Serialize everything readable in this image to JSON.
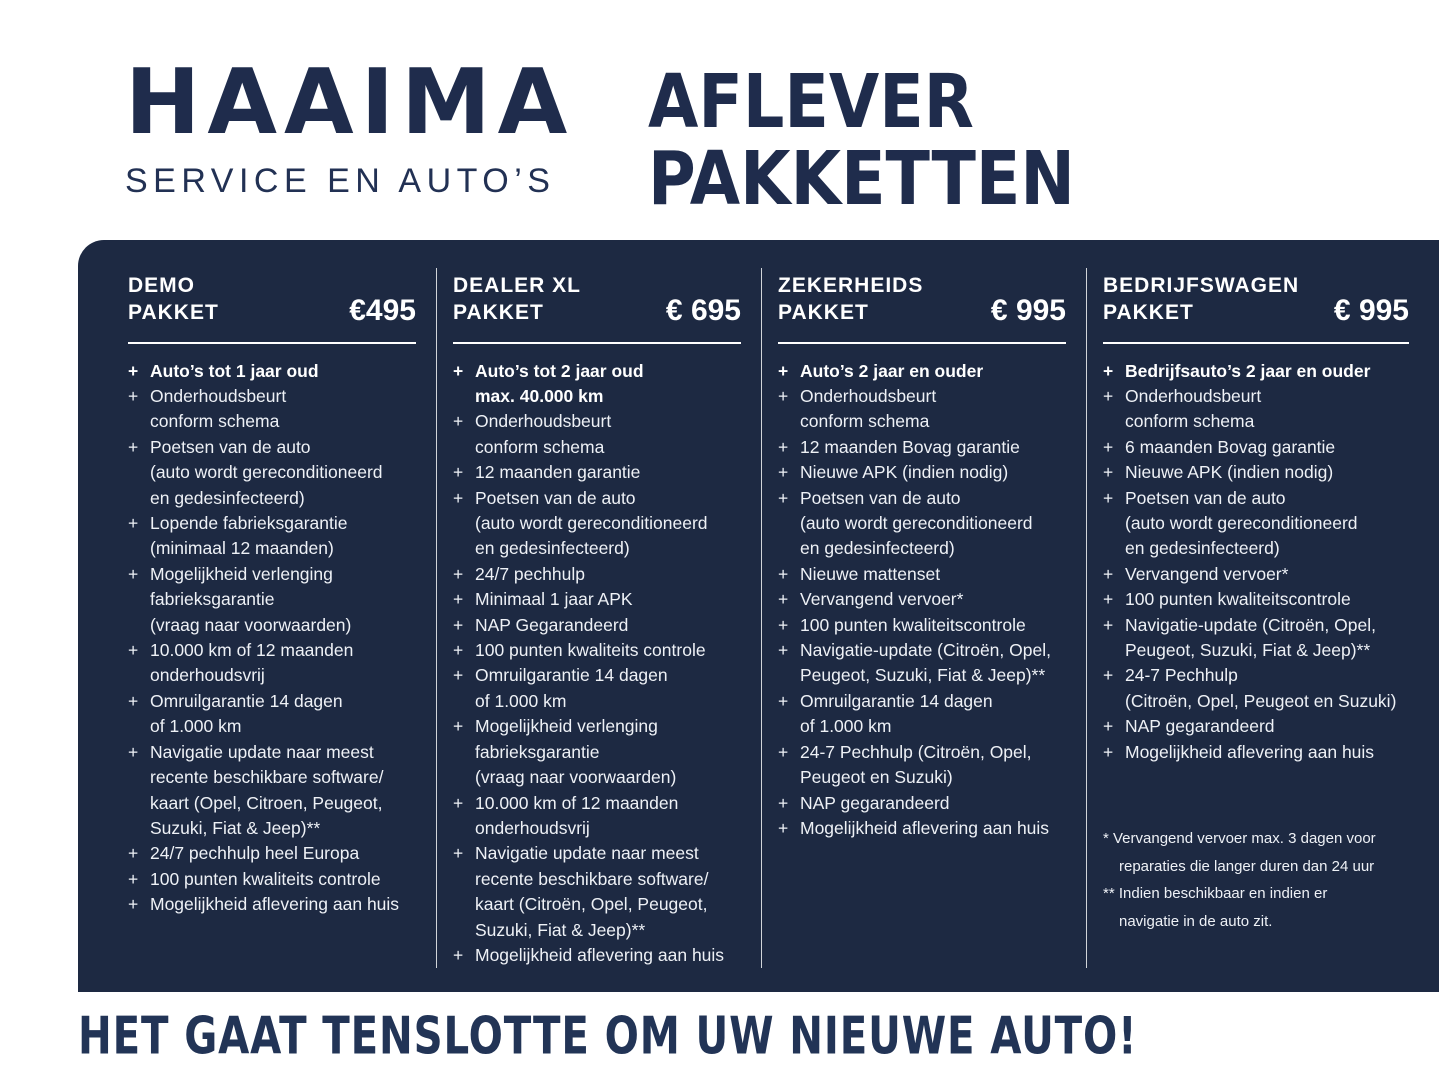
{
  "brand": {
    "name": "HAAIMA",
    "tagline": "SERVICE EN AUTO’S"
  },
  "title": "AFLEVER\nPAKKETTEN",
  "colors": {
    "panel_background": "#1d2942",
    "navy_text": "#1f2c4c",
    "panel_text": "#eef1f6"
  },
  "bullet": "+",
  "packages": [
    {
      "name": "DEMO\nPAKKET",
      "price": "€495",
      "items": [
        {
          "text": "Auto’s tot 1 jaar oud",
          "bold": true
        },
        {
          "text": "Onderhoudsbeurt\nconform schema"
        },
        {
          "text": "Poetsen van de auto\n(auto wordt gereconditioneerd\nen gedesinfecteerd)"
        },
        {
          "text": "Lopende fabrieksgarantie\n(minimaal 12 maanden)"
        },
        {
          "text": "Mogelijkheid verlenging\nfabrieksgarantie\n(vraag naar voorwaarden)"
        },
        {
          "text": "10.000 km of 12 maanden\nonderhoudsvrij"
        },
        {
          "text": "Omruilgarantie 14 dagen\nof 1.000 km"
        },
        {
          "text": "Navigatie update naar meest\nrecente beschikbare software/\nkaart (Opel, Citroen,  Peugeot,\nSuzuki, Fiat & Jeep)**"
        },
        {
          "text": "24/7 pechhulp heel Europa"
        },
        {
          "text": "100 punten kwaliteits controle"
        },
        {
          "text": "Mogelijkheid aflevering aan huis"
        }
      ]
    },
    {
      "name": "DEALER XL\nPAKKET",
      "price": "€ 695",
      "items": [
        {
          "text": "Auto’s tot 2 jaar oud\nmax. 40.000 km",
          "bold": true
        },
        {
          "text": "Onderhoudsbeurt\nconform schema"
        },
        {
          "text": "12 maanden garantie"
        },
        {
          "text": "Poetsen van de auto\n(auto wordt gereconditioneerd\nen gedesinfecteerd)"
        },
        {
          "text": "24/7 pechhulp"
        },
        {
          "text": "Minimaal 1 jaar APK"
        },
        {
          "text": "NAP Gegarandeerd"
        },
        {
          "text": "100 punten kwaliteits controle"
        },
        {
          "text": "Omruilgarantie 14 dagen\nof 1.000 km"
        },
        {
          "text": "Mogelijkheid verlenging\nfabrieksgarantie\n(vraag naar voorwaarden)"
        },
        {
          "text": "10.000 km of 12 maanden\nonderhoudsvrij"
        },
        {
          "text": "Navigatie update naar meest\nrecente beschikbare software/\nkaart (Citroën, Opel, Peugeot,\nSuzuki, Fiat & Jeep)**"
        },
        {
          "text": "Mogelijkheid aflevering aan huis"
        }
      ]
    },
    {
      "name": "ZEKERHEIDS\nPAKKET",
      "price": "€ 995",
      "items": [
        {
          "text": "Auto’s 2 jaar en ouder",
          "bold": true
        },
        {
          "text": "Onderhoudsbeurt\nconform schema"
        },
        {
          "text": "12 maanden Bovag garantie"
        },
        {
          "text": "Nieuwe APK (indien nodig)"
        },
        {
          "text": "Poetsen van de auto\n(auto wordt gereconditioneerd\nen gedesinfecteerd)"
        },
        {
          "text": "Nieuwe mattenset"
        },
        {
          "text": "Vervangend vervoer*"
        },
        {
          "text": "100 punten kwaliteitscontrole"
        },
        {
          "text": "Navigatie-update (Citroën, Opel,\nPeugeot, Suzuki, Fiat & Jeep)**"
        },
        {
          "text": "Omruilgarantie 14 dagen\nof 1.000 km"
        },
        {
          "text": "24-7 Pechhulp (Citroën, Opel,\nPeugeot en Suzuki)"
        },
        {
          "text": "NAP gegarandeerd"
        },
        {
          "text": "Mogelijkheid aflevering aan huis"
        }
      ]
    },
    {
      "name": "BEDRIJFSWAGEN\nPAKKET",
      "price": "€ 995",
      "items": [
        {
          "text": "Bedrijfsauto’s 2 jaar en ouder",
          "bold": true
        },
        {
          "text": "Onderhoudsbeurt\nconform schema"
        },
        {
          "text": "6 maanden Bovag garantie"
        },
        {
          "text": "Nieuwe APK (indien nodig)"
        },
        {
          "text": "Poetsen van de auto\n(auto wordt gereconditioneerd\nen gedesinfecteerd)"
        },
        {
          "text": "Vervangend vervoer*"
        },
        {
          "text": "100 punten kwaliteitscontrole"
        },
        {
          "text": "Navigatie-update (Citroën, Opel,\nPeugeot, Suzuki, Fiat & Jeep)**"
        },
        {
          "text": "24-7 Pechhulp\n(Citroën, Opel, Peugeot en Suzuki)"
        },
        {
          "text": "NAP gegarandeerd"
        },
        {
          "text": "Mogelijkheid aflevering aan huis"
        }
      ]
    }
  ],
  "footnotes": [
    {
      "text": "* Vervangend vervoer max. 3 dagen voor\nreparaties die langer duren dan 24 uur"
    },
    {
      "text": "** Indien beschikbaar en indien er\nnavigatie in de auto zit."
    }
  ],
  "footer": {
    "tagline": "HET GAAT TENSLOTTE OM UW NIEUWE AUTO!"
  }
}
